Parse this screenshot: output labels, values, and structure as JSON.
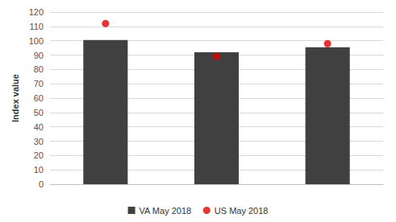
{
  "chart_data": {
    "type": "bar",
    "categories": [
      null,
      null,
      null
    ],
    "series": [
      {
        "name": "VA May 2018",
        "type": "bar",
        "color": "#404040",
        "values": [
          100.5,
          92,
          95.5
        ]
      },
      {
        "name": "US May 2018",
        "type": "scatter",
        "color": "#e00000",
        "marker": "circle",
        "values": [
          112,
          89,
          98
        ]
      }
    ],
    "ylabel": "Index value",
    "ylim": [
      0,
      120
    ],
    "yticks": [
      0,
      10,
      20,
      30,
      40,
      50,
      60,
      70,
      80,
      90,
      100,
      110,
      120
    ],
    "grid": true,
    "legend": "bottom"
  }
}
